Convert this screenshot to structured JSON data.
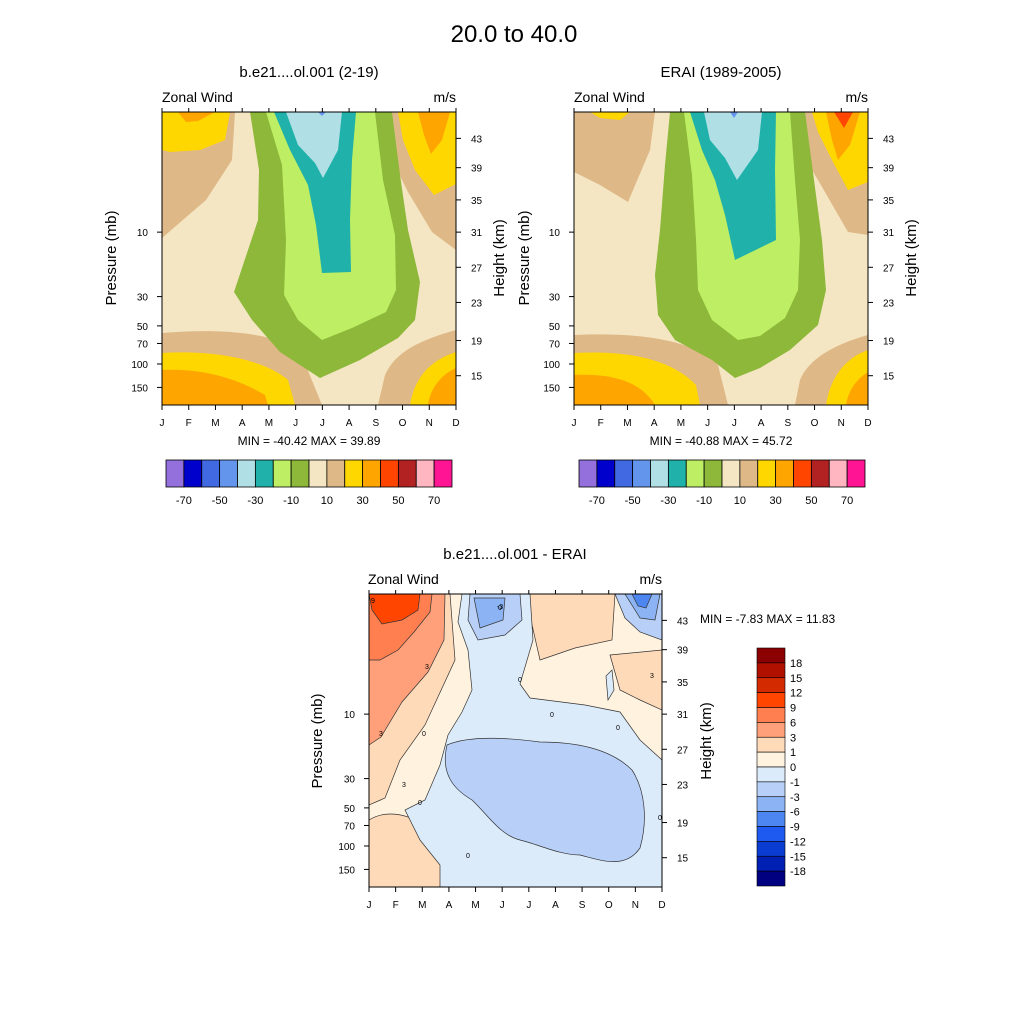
{
  "figure_title": "20.0 to  40.0",
  "chart_data": [
    {
      "type": "heatmap",
      "title": "b.e21....ol.001 (2-19)",
      "left_label": "Zonal Wind",
      "right_label": "m/s",
      "ylabel": "Pressure (mb)",
      "ylabel_right": "Height (km)",
      "x_ticks": [
        "J",
        "F",
        "M",
        "A",
        "M",
        "J",
        "J",
        "A",
        "S",
        "O",
        "N",
        "D"
      ],
      "y_ticks": [
        "10",
        "30",
        "50",
        "70",
        "100",
        "150"
      ],
      "y_ticks_right": [
        "43",
        "39",
        "35",
        "31",
        "27",
        "23",
        "19",
        "15"
      ],
      "min_max": "MIN = -40.42  MAX =  39.89",
      "colorbar_labels": [
        "-70",
        "-50",
        "-30",
        "-10",
        "10",
        "30",
        "50",
        "70"
      ],
      "colors": [
        "#9370DB",
        "#0000CD",
        "#4169E1",
        "#6495ED",
        "#B0E0E6",
        "#20B2AA",
        "#BDEE63",
        "#8DB83A",
        "#F5E6C3",
        "#DEB887",
        "#FFD700",
        "#FFA500",
        "#FF4500",
        "#B22222",
        "#FFB6C1",
        "#FF1493"
      ]
    },
    {
      "type": "heatmap",
      "title": "ERAI (1989-2005)",
      "left_label": "Zonal Wind",
      "right_label": "m/s",
      "ylabel": "Pressure (mb)",
      "ylabel_right": "Height (km)",
      "x_ticks": [
        "J",
        "F",
        "M",
        "A",
        "M",
        "J",
        "J",
        "A",
        "S",
        "O",
        "N",
        "D"
      ],
      "y_ticks": [
        "10",
        "30",
        "50",
        "70",
        "100",
        "150"
      ],
      "y_ticks_right": [
        "43",
        "39",
        "35",
        "31",
        "27",
        "23",
        "19",
        "15"
      ],
      "min_max": "MIN = -40.88  MAX =  45.72",
      "colorbar_labels": [
        "-70",
        "-50",
        "-30",
        "-10",
        "10",
        "30",
        "50",
        "70"
      ],
      "colors": [
        "#9370DB",
        "#0000CD",
        "#4169E1",
        "#6495ED",
        "#B0E0E6",
        "#20B2AA",
        "#BDEE63",
        "#8DB83A",
        "#F5E6C3",
        "#DEB887",
        "#FFD700",
        "#FFA500",
        "#FF4500",
        "#B22222",
        "#FFB6C1",
        "#FF1493"
      ]
    },
    {
      "type": "heatmap",
      "title": "b.e21....ol.001 - ERAI",
      "left_label": "Zonal Wind",
      "right_label": "m/s",
      "ylabel": "Pressure (mb)",
      "ylabel_right": "Height (km)",
      "x_ticks": [
        "J",
        "F",
        "M",
        "A",
        "M",
        "J",
        "J",
        "A",
        "S",
        "O",
        "N",
        "D"
      ],
      "y_ticks": [
        "10",
        "30",
        "50",
        "70",
        "100",
        "150"
      ],
      "y_ticks_right": [
        "43",
        "39",
        "35",
        "31",
        "27",
        "23",
        "19",
        "15"
      ],
      "min_max": "MIN =  -7.83  MAX =  11.83",
      "colorbar_labels": [
        "18",
        "15",
        "12",
        "9",
        "6",
        "3",
        "1",
        "0",
        "-1",
        "-3",
        "-6",
        "-9",
        "-12",
        "-15",
        "-18"
      ],
      "colors": [
        "#8B0000",
        "#B01000",
        "#D42A00",
        "#FF4500",
        "#FF7F50",
        "#FFA07A",
        "#FFDAB9",
        "#FFF3E0",
        "#DCEBFA",
        "#B8D0F8",
        "#8CB4F5",
        "#4D86F0",
        "#1E5AF0",
        "#0A3CD2",
        "#0020B4",
        "#000080"
      ],
      "contour_labels": [
        "0",
        "0",
        "0",
        "0",
        "0",
        "0",
        "0",
        "0",
        "3",
        "3",
        "3",
        "3",
        "-3",
        "9"
      ]
    }
  ]
}
